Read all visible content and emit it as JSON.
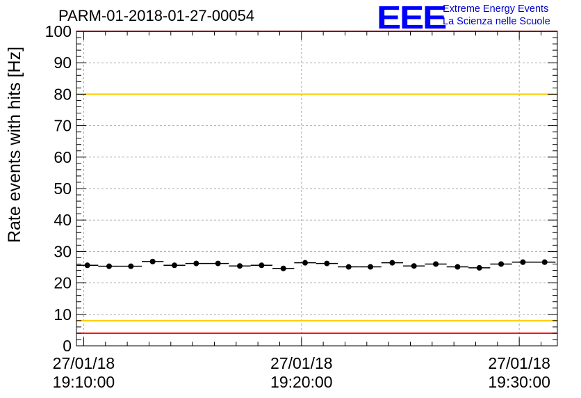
{
  "chart_data": {
    "type": "scatter",
    "title": "PARM-01-2018-01-27-00054",
    "ylabel": "Rate events with hits [Hz]",
    "xlabel": "",
    "ylim": [
      0,
      100
    ],
    "yticks": [
      0,
      10,
      20,
      30,
      40,
      50,
      60,
      70,
      80,
      90,
      100
    ],
    "xlim": [
      "2018-01-27 19:09:40",
      "2018-01-27 19:31:45"
    ],
    "xticks": [
      {
        "x": "2018-01-27 19:10:00",
        "date": "27/01/18",
        "time": "19:10:00"
      },
      {
        "x": "2018-01-27 19:20:00",
        "date": "27/01/18",
        "time": "19:20:00"
      },
      {
        "x": "2018-01-27 19:30:00",
        "date": "27/01/18",
        "time": "19:30:00"
      }
    ],
    "grid": true,
    "reference_lines": [
      {
        "y": 100,
        "color": "#ff0000"
      },
      {
        "y": 80,
        "color": "#ffcc00"
      },
      {
        "y": 8,
        "color": "#ffcc00"
      },
      {
        "y": 4,
        "color": "#ff0000"
      }
    ],
    "series": [
      {
        "color": "#000000",
        "marker": "circle",
        "x": [
          "2018-01-27 19:10:10",
          "2018-01-27 19:11:10",
          "2018-01-27 19:12:10",
          "2018-01-27 19:13:10",
          "2018-01-27 19:14:10",
          "2018-01-27 19:15:10",
          "2018-01-27 19:16:10",
          "2018-01-27 19:17:10",
          "2018-01-27 19:18:10",
          "2018-01-27 19:19:10",
          "2018-01-27 19:20:10",
          "2018-01-27 19:21:10",
          "2018-01-27 19:22:10",
          "2018-01-27 19:23:10",
          "2018-01-27 19:24:10",
          "2018-01-27 19:25:10",
          "2018-01-27 19:26:10",
          "2018-01-27 19:27:10",
          "2018-01-27 19:28:10",
          "2018-01-27 19:29:10",
          "2018-01-27 19:30:10",
          "2018-01-27 19:31:10"
        ],
        "y": [
          25.6,
          25.3,
          25.3,
          26.8,
          25.6,
          26.2,
          26.2,
          25.4,
          25.6,
          24.6,
          26.4,
          26.2,
          25.1,
          25.1,
          26.4,
          25.4,
          26.0,
          25.1,
          24.8,
          26.0,
          26.6,
          26.6
        ]
      }
    ]
  },
  "colors": {
    "frame": "#000000",
    "grid": "#aaaaaa",
    "marker": "#000000",
    "logo": "#0000ff"
  },
  "logo": {
    "mark": "EEE",
    "line1": "Extreme Energy Events",
    "line2": "La Scienza nelle Scuole"
  }
}
